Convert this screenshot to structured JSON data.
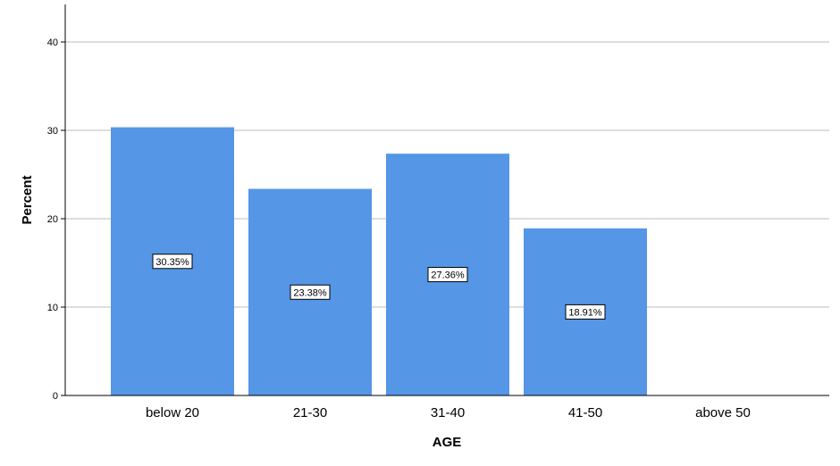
{
  "chart_data": {
    "type": "bar",
    "categories": [
      "below 20",
      "21-30",
      "31-40",
      "41-50",
      "above 50"
    ],
    "values": [
      30.35,
      23.38,
      27.36,
      18.91,
      0
    ],
    "data_labels": [
      "30.35%",
      "23.38%",
      "27.36%",
      "18.91%",
      ""
    ],
    "xlabel": "AGE",
    "ylabel": "Percent",
    "ylim": [
      0,
      44
    ],
    "yticks": [
      "0",
      "10",
      "20",
      "30",
      "40"
    ],
    "grid": true,
    "legend": "none",
    "bar_color": "#5596E6"
  }
}
